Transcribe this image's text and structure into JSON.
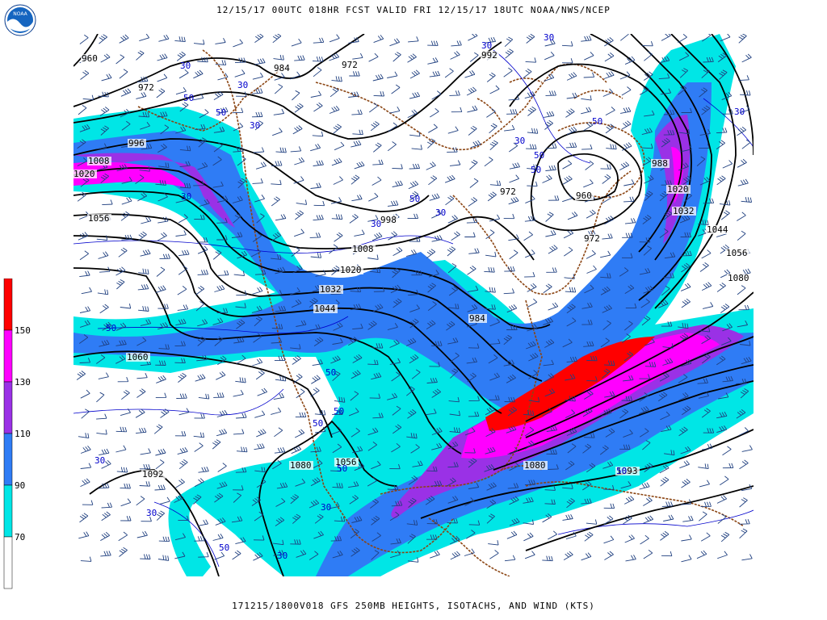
{
  "header": {
    "title": "12/15/17 00UTC 018HR FCST VALID FRI 12/15/17 18UTC NOAA/NWS/NCEP"
  },
  "footer": {
    "caption": "171215/1800V018 GFS 250MB HEIGHTS, ISOTACHS, AND WIND (KTS)"
  },
  "logo": {
    "text": "NOAA"
  },
  "legend": {
    "labels": [
      "150",
      "130",
      "110",
      "90",
      "70"
    ],
    "colors": [
      "#ff0000",
      "#ff00ff",
      "#9a31e6",
      "#2f7cf5",
      "#00e6e6",
      "#ffffff"
    ]
  },
  "map": {
    "colors": {
      "land_outline": "#8b4513",
      "height_contours": "#000000",
      "isotach_lines": "#0000cc",
      "barbs": "#1f3f7f"
    },
    "height_labels": [
      "960",
      "984",
      "972",
      "992",
      "972",
      "996",
      "1008",
      "1020",
      "1056",
      "998",
      "1008",
      "1020",
      "1032",
      "1044",
      "1060",
      "1092",
      "1080",
      "1056",
      "984",
      "972",
      "960",
      "972",
      "988",
      "1020",
      "1032",
      "1044",
      "1056",
      "1080",
      "1080",
      "1093"
    ],
    "isotach_labels": [
      "30",
      "30",
      "30",
      "50",
      "30",
      "50",
      "30",
      "30",
      "30",
      "30",
      "50",
      "50",
      "30",
      "50",
      "50",
      "30",
      "50",
      "50",
      "50",
      "50",
      "30",
      "30",
      "30",
      "50",
      "50",
      "30",
      "50"
    ]
  }
}
